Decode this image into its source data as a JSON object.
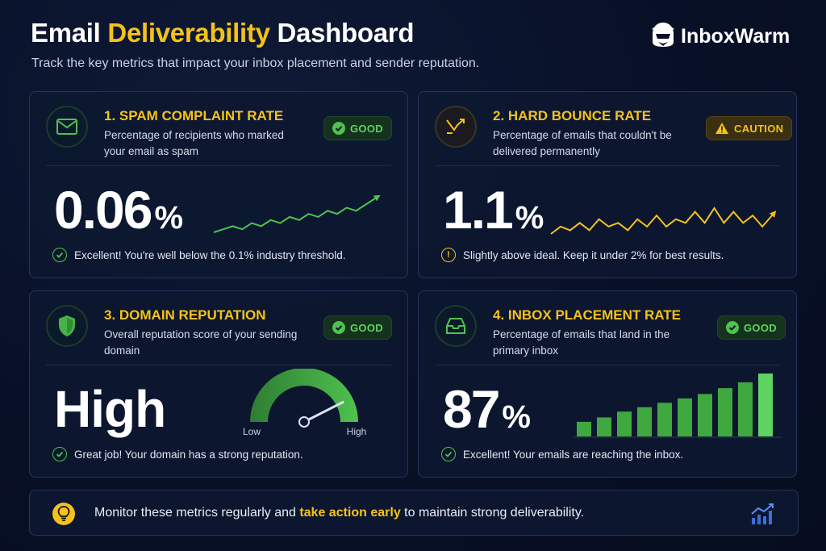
{
  "header": {
    "title_part1": "Email ",
    "title_accent": "Deliverability",
    "title_part2": " Dashboard",
    "subtitle": "Track the key metrics that impact your inbox placement and sender reputation."
  },
  "brand": {
    "name": "InboxWarm",
    "icon": "hero-helmet-icon"
  },
  "colors": {
    "accent": "#f5c21b",
    "good": "#4fc24f",
    "background": "#081027",
    "card": "#0d1730"
  },
  "cards": [
    {
      "title": "1. SPAM COMPLAINT RATE",
      "description": "Percentage of recipients who marked your email as spam",
      "icon": "envelope-icon",
      "badge": "GOOD",
      "badge_status": "good",
      "value": "0.06",
      "unit": "%",
      "note": "Excellent! You're well below the 0.1% industry threshold.",
      "trend": [
        2,
        3,
        4,
        3,
        5,
        4,
        6,
        5,
        7,
        6,
        8,
        7,
        9,
        8,
        10,
        9,
        11,
        13
      ]
    },
    {
      "title": "2. HARD BOUNCE RATE",
      "description": "Percentage of emails that couldn't be delivered permanently",
      "icon": "bounce-arrow-icon",
      "badge": "CAUTION",
      "badge_status": "caution",
      "value": "1.1",
      "unit": "%",
      "note": "Slightly above ideal. Keep it under 2% for best results.",
      "trend": [
        2,
        4,
        3,
        5,
        3,
        6,
        4,
        5,
        3,
        6,
        4,
        7,
        4,
        6,
        5,
        8,
        5,
        9,
        5,
        8,
        5,
        7,
        4,
        7
      ]
    },
    {
      "title": "3. DOMAIN REPUTATION",
      "description": "Overall reputation score of your sending domain",
      "icon": "shield-icon",
      "badge": "GOOD",
      "badge_status": "good",
      "value": "High",
      "note": "Great job! Your domain has a strong reputation.",
      "gauge": {
        "low_label": "Low",
        "high_label": "High",
        "level": 0.85
      }
    },
    {
      "title": "4. INBOX PLACEMENT RATE",
      "description": "Percentage of emails that land in the primary inbox",
      "icon": "inbox-tray-icon",
      "badge": "GOOD",
      "badge_status": "good",
      "value": "87",
      "unit": "%",
      "note": "Excellent! Your emails are reaching the inbox.",
      "bars": [
        1,
        1.3,
        1.7,
        2.0,
        2.3,
        2.6,
        2.9,
        3.3,
        3.7,
        4.3
      ]
    }
  ],
  "footer": {
    "text_before": "Monitor these metrics regularly and ",
    "text_accent": "take action early",
    "text_after": " to maintain strong deliverability.",
    "left_icon": "lightbulb-icon",
    "right_icon": "growth-chart-icon"
  }
}
